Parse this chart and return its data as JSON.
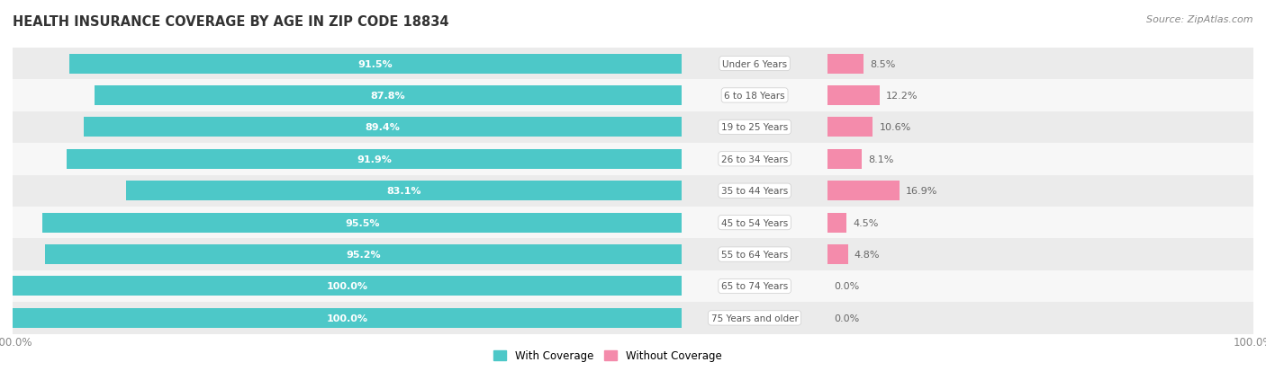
{
  "title": "HEALTH INSURANCE COVERAGE BY AGE IN ZIP CODE 18834",
  "source": "Source: ZipAtlas.com",
  "categories": [
    "Under 6 Years",
    "6 to 18 Years",
    "19 to 25 Years",
    "26 to 34 Years",
    "35 to 44 Years",
    "45 to 54 Years",
    "55 to 64 Years",
    "65 to 74 Years",
    "75 Years and older"
  ],
  "with_coverage": [
    91.5,
    87.8,
    89.4,
    91.9,
    83.1,
    95.5,
    95.2,
    100.0,
    100.0
  ],
  "without_coverage": [
    8.5,
    12.2,
    10.6,
    8.1,
    16.9,
    4.5,
    4.8,
    0.0,
    0.0
  ],
  "color_with": "#4DC8C8",
  "color_without": "#F48BAB",
  "color_bg_row_odd": "#EBEBEB",
  "color_bg_row_even": "#F7F7F7",
  "color_bg_main": "#FFFFFF",
  "bar_height": 0.62,
  "title_fontsize": 10.5,
  "label_fontsize": 8.0,
  "tick_fontsize": 8.5,
  "source_fontsize": 8.0,
  "wc_label_color": "#FFFFFF",
  "woc_label_color": "#666666",
  "cat_label_color": "#555555"
}
